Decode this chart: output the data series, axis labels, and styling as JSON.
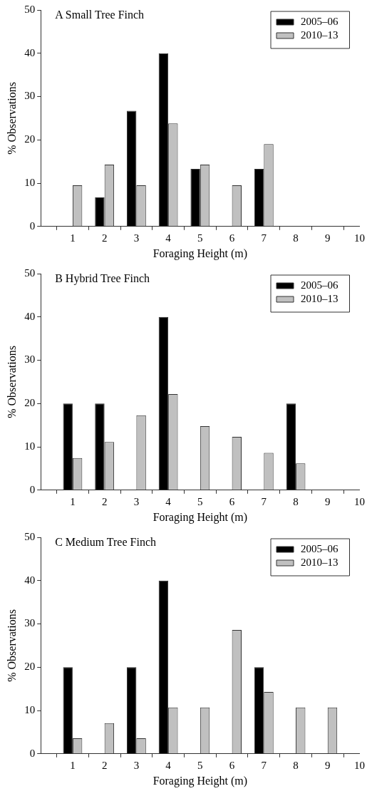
{
  "chart_data": [
    {
      "type": "bar",
      "title": "A Small Tree Finch",
      "xlabel": "Foraging Height (m)",
      "ylabel": "% Observations",
      "x": [
        1,
        2,
        3,
        4,
        5,
        6,
        7,
        8,
        9,
        10
      ],
      "xlim": [
        0,
        10
      ],
      "xticks": [
        1,
        2,
        3,
        4,
        5,
        6,
        7,
        8,
        9,
        10
      ],
      "ylim": [
        0,
        50
      ],
      "yticks": [
        0,
        10,
        20,
        30,
        40,
        50
      ],
      "legend": "top right",
      "series": [
        {
          "name": "2005–06",
          "color": "#000000",
          "values": [
            0,
            6.7,
            26.7,
            40,
            13.3,
            0,
            13.3,
            0,
            0,
            0
          ]
        },
        {
          "name": "2010–13",
          "color": "#c0c0c0",
          "values": [
            9.5,
            14.3,
            9.5,
            23.8,
            14.3,
            9.5,
            19,
            0,
            0,
            0
          ]
        }
      ]
    },
    {
      "type": "bar",
      "title": "B Hybrid Tree Finch",
      "xlabel": "Foraging Height (m)",
      "ylabel": "% Observations",
      "x": [
        1,
        2,
        3,
        4,
        5,
        6,
        7,
        8,
        9,
        10
      ],
      "xlim": [
        0,
        10
      ],
      "xticks": [
        1,
        2,
        3,
        4,
        5,
        6,
        7,
        8,
        9,
        10
      ],
      "ylim": [
        0,
        50
      ],
      "yticks": [
        0,
        10,
        20,
        30,
        40,
        50
      ],
      "legend": "top right",
      "series": [
        {
          "name": "2005–06",
          "color": "#000000",
          "values": [
            20,
            20,
            0,
            40,
            0,
            0,
            0,
            20,
            0,
            0
          ]
        },
        {
          "name": "2010–13",
          "color": "#c0c0c0",
          "values": [
            7.4,
            11.1,
            17.3,
            22.2,
            14.8,
            12.3,
            8.6,
            6.2,
            0,
            0
          ]
        }
      ]
    },
    {
      "type": "bar",
      "title": "C Medium Tree Finch",
      "xlabel": "Foraging Height (m)",
      "ylabel": "% Observations",
      "x": [
        1,
        2,
        3,
        4,
        5,
        6,
        7,
        8,
        9,
        10
      ],
      "xlim": [
        0,
        10
      ],
      "xticks": [
        1,
        2,
        3,
        4,
        5,
        6,
        7,
        8,
        9,
        10
      ],
      "ylim": [
        0,
        50
      ],
      "yticks": [
        0,
        10,
        20,
        30,
        40,
        50
      ],
      "legend": "top right",
      "series": [
        {
          "name": "2005–06",
          "color": "#000000",
          "values": [
            20,
            0,
            20,
            40,
            0,
            0,
            20,
            0,
            0,
            0
          ]
        },
        {
          "name": "2010–13",
          "color": "#c0c0c0",
          "values": [
            3.6,
            7.1,
            3.6,
            10.7,
            10.7,
            28.6,
            14.3,
            10.7,
            10.7,
            0
          ]
        }
      ]
    }
  ]
}
